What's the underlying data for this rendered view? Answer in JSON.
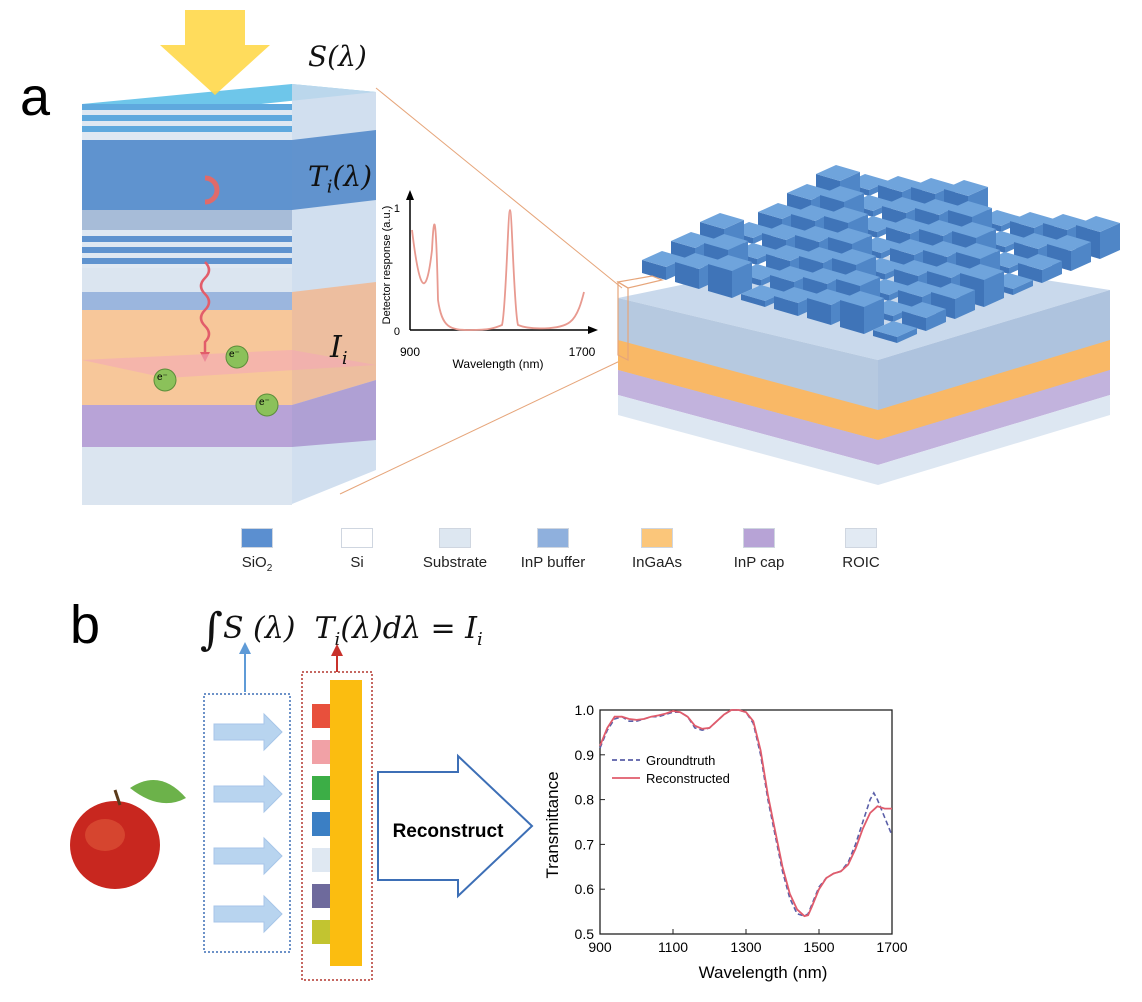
{
  "panel_a": {
    "letter": "a",
    "source_label": "S(λ)",
    "transmission_label_main": "T",
    "transmission_label_sub": "i",
    "transmission_label_arg": "(λ)",
    "current_label_main": "I",
    "current_label_sub": "i",
    "electron_label": "e⁻",
    "inset": {
      "ylabel": "Detector response (a.u.)",
      "xlabel": "Wavelength (nm)",
      "ytick_top": "1",
      "ytick_bottom": "0",
      "xtick_left": "900",
      "xtick_right": "1700"
    }
  },
  "legend": [
    {
      "label": "SiO",
      "sub": "2",
      "color": "#5b8fd0"
    },
    {
      "label": "Si",
      "sub": "",
      "color": "#ffffff"
    },
    {
      "label": "Substrate",
      "sub": "",
      "color": "#dde7f1"
    },
    {
      "label": "InP buffer",
      "sub": "",
      "color": "#8fb0dd"
    },
    {
      "label": "InGaAs",
      "sub": "",
      "color": "#fbc67a"
    },
    {
      "label": "InP cap",
      "sub": "",
      "color": "#b7a3d6"
    },
    {
      "label": "ROIC",
      "sub": "",
      "color": "#e2eaf3"
    }
  ],
  "panel_b": {
    "letter": "b",
    "equation": {
      "integral": "∫",
      "s": "S (λ)",
      "t_main": "T",
      "t_sub": "i",
      "t_rest": "(λ)dλ = ",
      "i_main": "I",
      "i_sub": "i"
    },
    "filter_colors": [
      "#e8503c",
      "#f1a1a6",
      "#3cae46",
      "#3b7fc4",
      "#dfe8f2",
      "#6e6a9c",
      "#c2c430"
    ],
    "detector_color": "#fbbd10",
    "reconstruct_label": "Reconstruct"
  },
  "chart_data": {
    "type": "line",
    "title": "",
    "xlabel": "Wavelength (nm)",
    "ylabel": "Transmittance",
    "xlim": [
      900,
      1700
    ],
    "ylim": [
      0.5,
      1.0
    ],
    "xticks": [
      900,
      1100,
      1300,
      1500,
      1700
    ],
    "yticks": [
      0.5,
      0.6,
      0.7,
      0.8,
      0.9,
      1.0
    ],
    "legend_position": "top-left",
    "series": [
      {
        "name": "Groundtruth",
        "style": "dashed",
        "color": "#5a5fa8",
        "x": [
          900,
          920,
          940,
          960,
          980,
          1000,
          1020,
          1040,
          1060,
          1080,
          1100,
          1120,
          1140,
          1160,
          1180,
          1200,
          1220,
          1240,
          1260,
          1280,
          1300,
          1320,
          1340,
          1360,
          1380,
          1400,
          1420,
          1440,
          1460,
          1470,
          1480,
          1500,
          1520,
          1540,
          1560,
          1580,
          1600,
          1620,
          1640,
          1650,
          1660,
          1680,
          1700
        ],
        "y": [
          0.915,
          0.955,
          0.98,
          0.985,
          0.975,
          0.975,
          0.98,
          0.985,
          0.985,
          0.99,
          0.995,
          0.995,
          0.985,
          0.96,
          0.955,
          0.96,
          0.975,
          0.99,
          1.0,
          1.0,
          0.995,
          0.97,
          0.9,
          0.8,
          0.72,
          0.64,
          0.58,
          0.545,
          0.54,
          0.545,
          0.565,
          0.605,
          0.625,
          0.635,
          0.64,
          0.66,
          0.7,
          0.75,
          0.8,
          0.815,
          0.8,
          0.76,
          0.72
        ]
      },
      {
        "name": "Reconstructed",
        "style": "solid",
        "color": "#e05c6c",
        "x": [
          900,
          920,
          940,
          960,
          980,
          1000,
          1020,
          1040,
          1060,
          1080,
          1100,
          1120,
          1140,
          1160,
          1180,
          1200,
          1220,
          1240,
          1260,
          1280,
          1300,
          1320,
          1340,
          1360,
          1380,
          1400,
          1420,
          1440,
          1460,
          1470,
          1480,
          1500,
          1520,
          1540,
          1560,
          1580,
          1600,
          1620,
          1640,
          1660,
          1680,
          1700
        ],
        "y": [
          0.92,
          0.96,
          0.985,
          0.985,
          0.98,
          0.978,
          0.98,
          0.985,
          0.988,
          0.992,
          0.998,
          0.995,
          0.985,
          0.965,
          0.958,
          0.96,
          0.975,
          0.99,
          1.0,
          1.0,
          0.995,
          0.975,
          0.91,
          0.81,
          0.73,
          0.65,
          0.59,
          0.555,
          0.54,
          0.542,
          0.56,
          0.6,
          0.625,
          0.635,
          0.64,
          0.655,
          0.69,
          0.735,
          0.77,
          0.785,
          0.78,
          0.78
        ]
      }
    ]
  }
}
